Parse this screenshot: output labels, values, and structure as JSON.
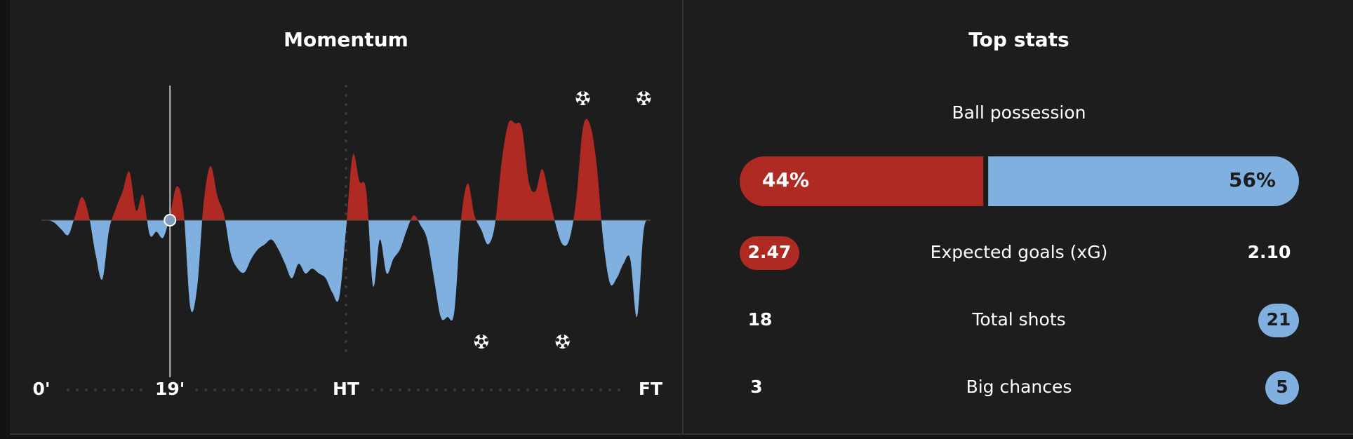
{
  "chart_data": {
    "type": "area",
    "title": "Momentum",
    "x": [
      0,
      1,
      2,
      3,
      4,
      5,
      6,
      7,
      8,
      9,
      10,
      11,
      12,
      13,
      14,
      15,
      16,
      17,
      18,
      19,
      20,
      21,
      22,
      23,
      24,
      25,
      26,
      27,
      28,
      29,
      30,
      31,
      32,
      33,
      34,
      35,
      36,
      37,
      38,
      39,
      40,
      41,
      42,
      43,
      44,
      45,
      46,
      47,
      48,
      49,
      50,
      51,
      52,
      53,
      54,
      55,
      56,
      57,
      58,
      59,
      60,
      61,
      62,
      63,
      64,
      65,
      66,
      67,
      68,
      69,
      70,
      71,
      72,
      73,
      74,
      75,
      76,
      77,
      78,
      79,
      80,
      81,
      82,
      83,
      84,
      85,
      86,
      87,
      88,
      89,
      90
    ],
    "values": [
      0,
      0,
      -3,
      -10,
      -15,
      5,
      24,
      5,
      -35,
      -61,
      -10,
      12,
      30,
      50,
      10,
      26,
      -15,
      -12,
      -18,
      5,
      35,
      10,
      -90,
      -70,
      20,
      56,
      25,
      5,
      -35,
      -50,
      -54,
      -40,
      -30,
      -25,
      -20,
      -30,
      -45,
      -60,
      -45,
      -55,
      -50,
      -55,
      -60,
      -75,
      -80,
      -10,
      67,
      40,
      30,
      -68,
      -20,
      -55,
      -40,
      -30,
      -10,
      5,
      -5,
      -20,
      -60,
      -100,
      -100,
      -95,
      0,
      38,
      5,
      -10,
      -25,
      -5,
      60,
      100,
      100,
      95,
      40,
      30,
      53,
      25,
      -5,
      -25,
      -20,
      20,
      95,
      100,
      60,
      -20,
      -65,
      -60,
      -45,
      -40,
      -100,
      -10,
      0
    ],
    "colors": {
      "positive": "#ae2a22",
      "negative": "#80b0e0"
    },
    "xlim": [
      0,
      90
    ],
    "ylim": [
      -100,
      100
    ],
    "xticks": [
      {
        "value": 0,
        "label": "0'"
      },
      {
        "value": 19,
        "label": "19'"
      },
      {
        "value": 45,
        "label": "HT"
      },
      {
        "value": 90,
        "label": "FT"
      }
    ],
    "home_goals": [
      80,
      89
    ],
    "away_goals": [
      65,
      77
    ]
  },
  "top_stats": {
    "title": "Top stats",
    "possession": {
      "label": "Ball possession",
      "values": [
        44,
        56
      ],
      "value_labels": [
        "44%",
        "56%"
      ]
    },
    "rows": [
      {
        "label": "Expected goals (xG)",
        "home": "2.47",
        "away": "2.10",
        "highlight": "home"
      },
      {
        "label": "Total shots",
        "home": "18",
        "away": "21",
        "highlight": "away"
      },
      {
        "label": "Big chances",
        "home": "3",
        "away": "5",
        "highlight": "away"
      }
    ]
  }
}
